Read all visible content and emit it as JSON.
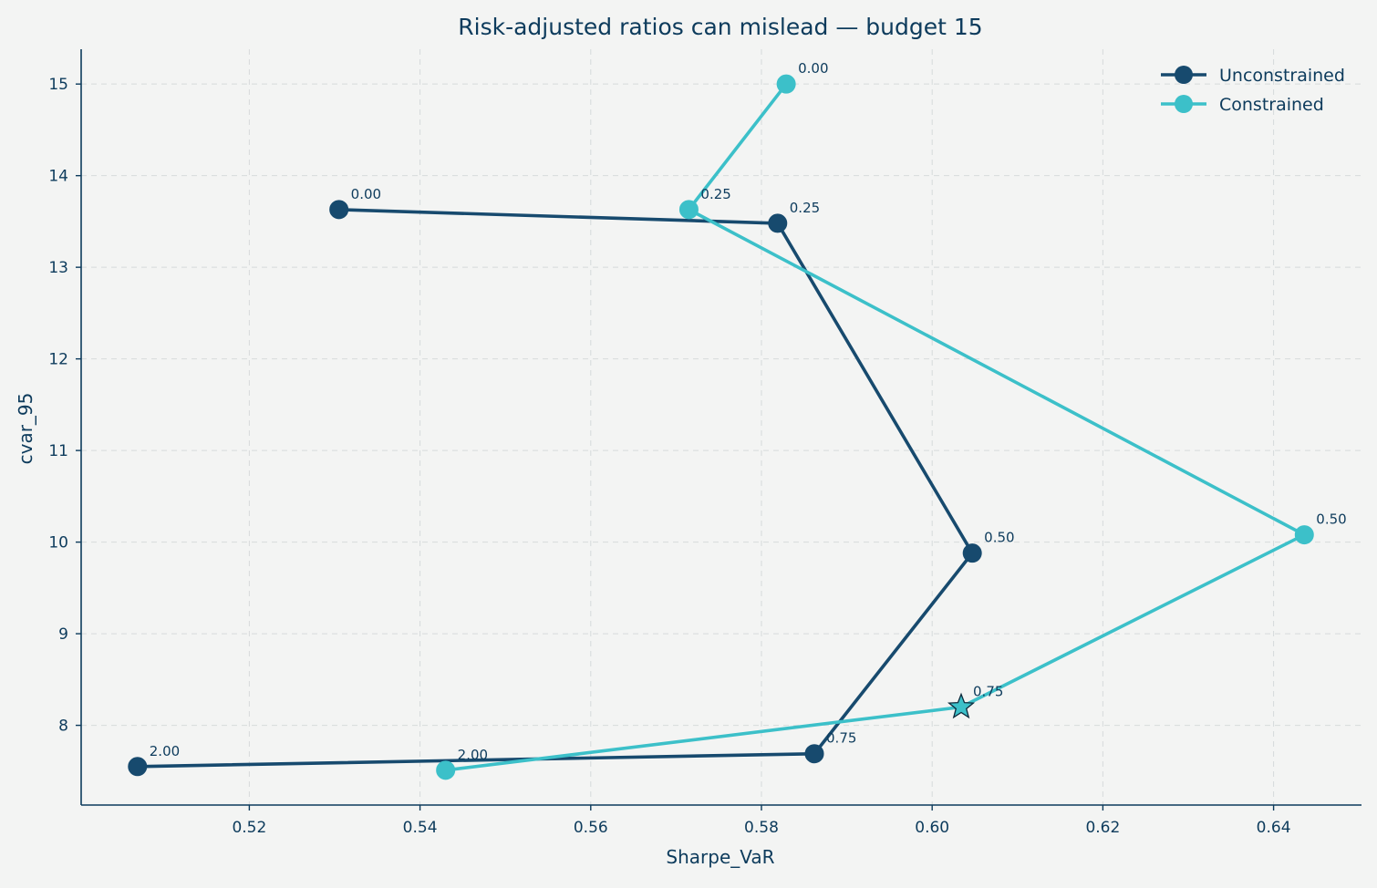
{
  "chart_data": {
    "type": "line",
    "title": "Risk-adjusted ratios can mislead — budget 15",
    "xlabel": "Sharpe_VaR",
    "ylabel": "cvar_95",
    "xlim": [
      0.5003,
      0.6503
    ],
    "ylim": [
      7.13,
      15.38
    ],
    "xticks": [
      0.52,
      0.54,
      0.56,
      0.58,
      0.6,
      0.62,
      0.64
    ],
    "xtick_labels": [
      "0.52",
      "0.54",
      "0.56",
      "0.58",
      "0.60",
      "0.62",
      "0.64"
    ],
    "yticks": [
      8,
      9,
      10,
      11,
      12,
      13,
      14,
      15
    ],
    "ytick_labels": [
      "8",
      "9",
      "10",
      "11",
      "12",
      "13",
      "14",
      "15"
    ],
    "grid": true,
    "legend_position": "top-right",
    "series": [
      {
        "name": "Unconstrained",
        "color": "#174a6e",
        "points": [
          {
            "x": 0.5305,
            "y": 13.63,
            "label": "0.00"
          },
          {
            "x": 0.5819,
            "y": 13.48,
            "label": "0.25"
          },
          {
            "x": 0.6047,
            "y": 9.88,
            "label": "0.50"
          },
          {
            "x": 0.5862,
            "y": 7.69,
            "label": "0.75"
          },
          {
            "x": 0.5069,
            "y": 7.55,
            "label": "2.00"
          }
        ]
      },
      {
        "name": "Constrained",
        "color": "#3cc0c9",
        "points": [
          {
            "x": 0.5829,
            "y": 15.0,
            "label": "0.00"
          },
          {
            "x": 0.5715,
            "y": 13.63,
            "label": "0.25"
          },
          {
            "x": 0.6436,
            "y": 10.08,
            "label": "0.50"
          },
          {
            "x": 0.6034,
            "y": 8.2,
            "label": "0.75",
            "marker": "star"
          },
          {
            "x": 0.543,
            "y": 7.51,
            "label": "2.00"
          }
        ]
      }
    ]
  }
}
